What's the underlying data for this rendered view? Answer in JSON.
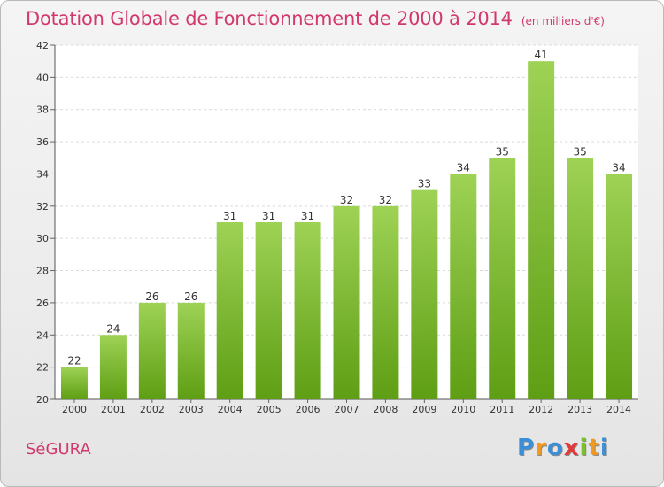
{
  "title": "Dotation Globale de Fonctionnement de 2000 à 2014",
  "unit": "(en milliers d'€)",
  "place": "SéGURA",
  "logo": {
    "letters": [
      "P",
      "r",
      "o",
      "x",
      "i",
      "t",
      "i"
    ],
    "colors": [
      "#3a8fd8",
      "#f39a1e",
      "#3a8fd8",
      "#e03a3a",
      "#7cbf30",
      "#f39a1e",
      "#3a8fd8"
    ]
  },
  "colors": {
    "bar_light": "#9ed255",
    "bar_dark": "#5e9e14",
    "title": "#d2386c"
  },
  "chart_data": {
    "type": "bar",
    "categories": [
      "2000",
      "2001",
      "2002",
      "2003",
      "2004",
      "2005",
      "2006",
      "2007",
      "2008",
      "2009",
      "2010",
      "2011",
      "2012",
      "2013",
      "2014"
    ],
    "values": [
      22,
      24,
      26,
      26,
      31,
      31,
      31,
      32,
      32,
      33,
      34,
      35,
      41,
      35,
      34
    ],
    "ylim": [
      20,
      42
    ],
    "yticks": [
      20,
      22,
      24,
      26,
      28,
      30,
      32,
      34,
      36,
      38,
      40,
      42
    ],
    "grid": true
  }
}
